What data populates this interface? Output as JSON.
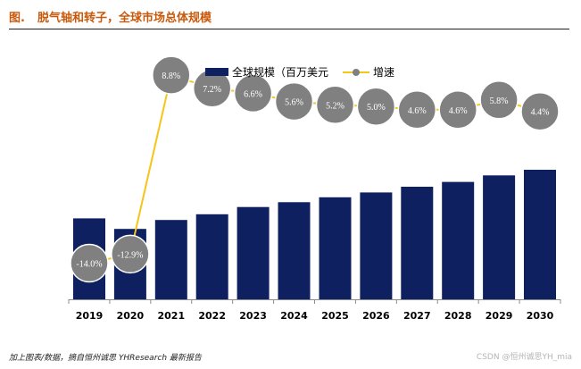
{
  "header": {
    "figure_label": "图.",
    "title": "脱气轴和转子，全球市场总体规模"
  },
  "footer": {
    "source": "加上图表/数据，摘自恒州诚思 YHResearch 最新报告",
    "watermark": "CSDN @恒州诚思YH_mia"
  },
  "colors": {
    "bar": "#0f2060",
    "line": "#f5c518",
    "marker": "#808080",
    "marker_border": "#ffffff",
    "title": "#c8590b"
  },
  "chart_data": {
    "type": "bar+line",
    "title": "脱气轴和转子，全球市场总体规模",
    "categories": [
      "2019",
      "2020",
      "2021",
      "2022",
      "2023",
      "2024",
      "2025",
      "2026",
      "2027",
      "2028",
      "2029",
      "2030"
    ],
    "series": [
      {
        "name": "全球规模（百万美元）",
        "type": "bar",
        "axis": "left",
        "values": [
          100,
          87,
          98,
          105,
          114,
          120,
          126,
          132,
          139,
          145,
          153,
          160
        ]
      },
      {
        "name": "增速",
        "type": "line",
        "axis": "right",
        "values": [
          -14.0,
          -12.9,
          8.8,
          7.2,
          6.6,
          5.6,
          5.2,
          5.0,
          4.6,
          4.6,
          5.8,
          4.4
        ]
      }
    ],
    "data_labels": [
      "-14.0%",
      "-12.9%",
      "8.8%",
      "7.2%",
      "6.6%",
      "5.6%",
      "5.2%",
      "5.0%",
      "4.6%",
      "4.6%",
      "5.8%",
      "4.4%"
    ],
    "legend": {
      "position": "top-right",
      "bar_label": "全球规模（百万美元",
      "line_label": "增速"
    },
    "left_ylim": [
      0,
      160
    ],
    "right_ylim": [
      -16,
      10
    ],
    "grid": false,
    "xlabel": "",
    "ylabel": ""
  }
}
